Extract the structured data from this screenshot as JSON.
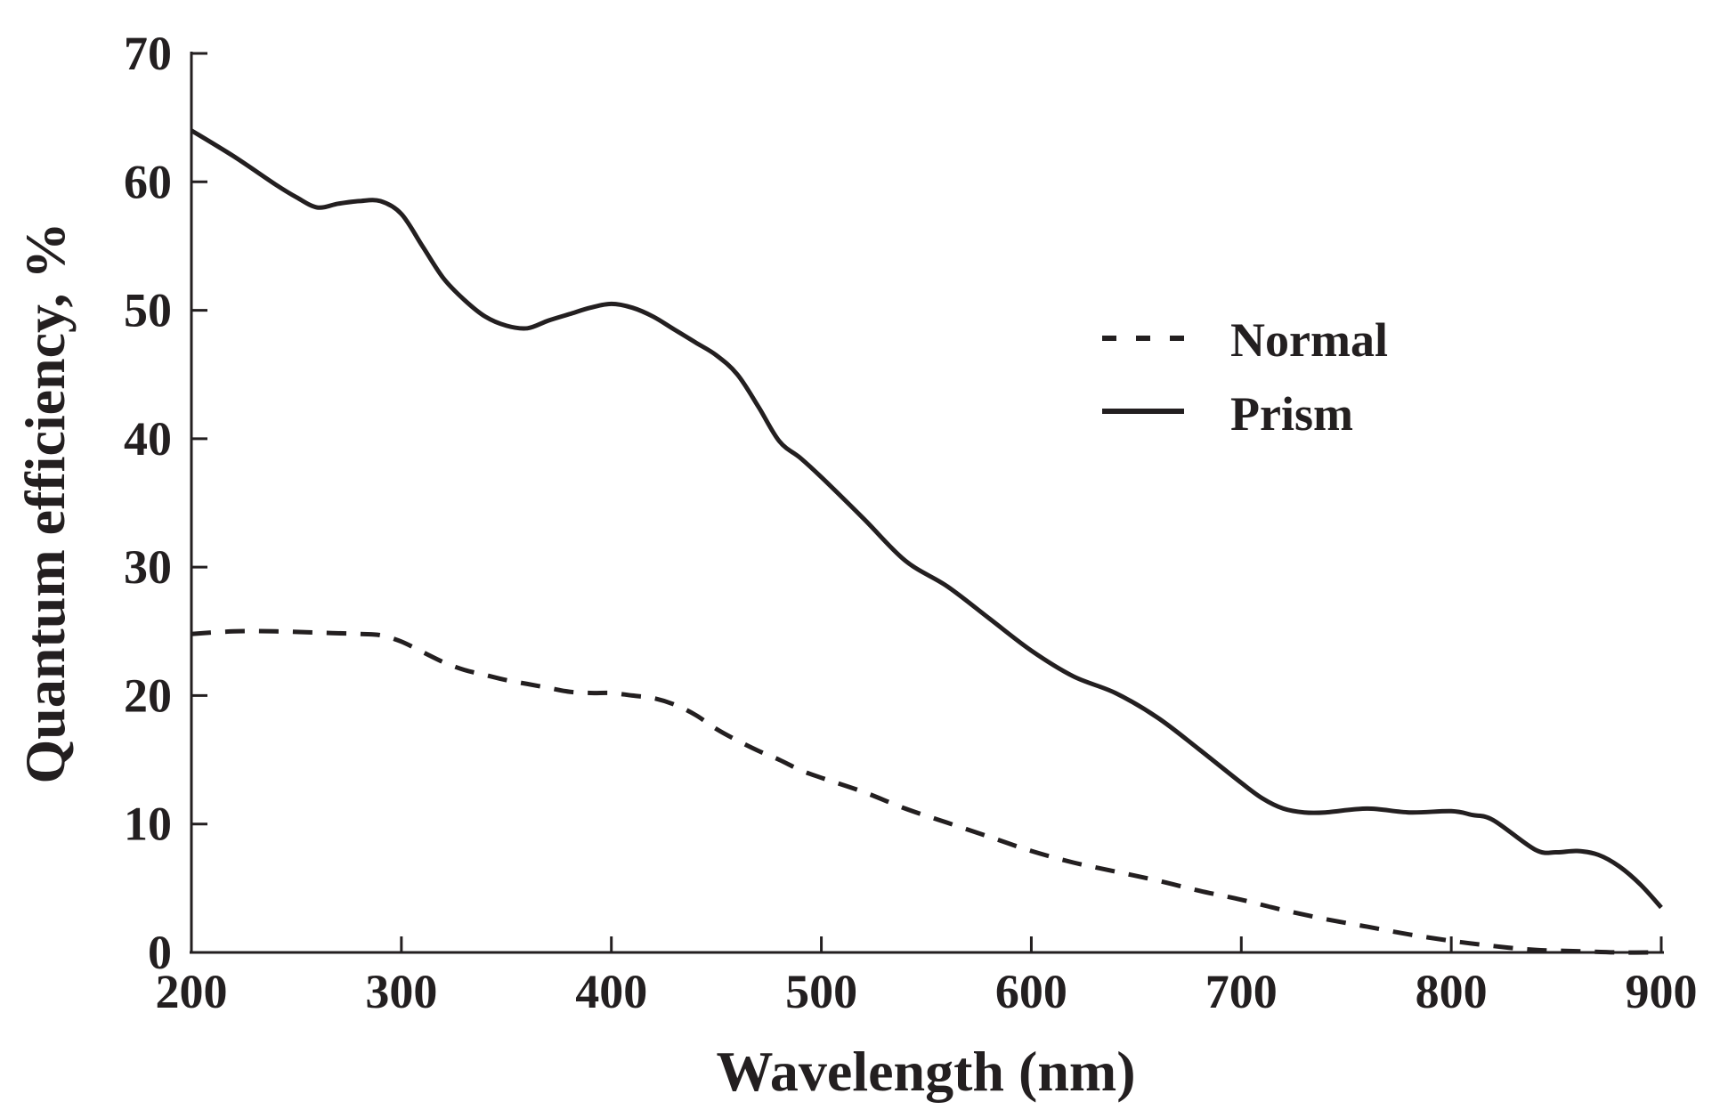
{
  "chart_data": {
    "type": "line",
    "title": "",
    "xlabel": "Wavelength (nm)",
    "ylabel": "Quantum efficiency, %",
    "xlim": [
      200,
      900
    ],
    "ylim": [
      0,
      70
    ],
    "xticks": [
      200,
      300,
      400,
      500,
      600,
      700,
      800,
      900
    ],
    "yticks": [
      0,
      10,
      20,
      30,
      40,
      50,
      60,
      70
    ],
    "grid": false,
    "legend_position": "top-right",
    "line_color": "#231f20",
    "series": [
      {
        "name": "Normal",
        "style": "dashed",
        "x": [
          200,
          220,
          240,
          260,
          280,
          290,
          300,
          310,
          320,
          330,
          340,
          350,
          360,
          370,
          380,
          390,
          400,
          410,
          420,
          430,
          440,
          450,
          460,
          470,
          480,
          490,
          500,
          520,
          540,
          560,
          580,
          600,
          620,
          640,
          660,
          680,
          700,
          720,
          740,
          760,
          780,
          800,
          820,
          840,
          860,
          880,
          900
        ],
        "y": [
          24.8,
          25.0,
          25.0,
          24.9,
          24.8,
          24.7,
          24.2,
          23.4,
          22.6,
          22.0,
          21.6,
          21.2,
          20.9,
          20.6,
          20.3,
          20.2,
          20.2,
          20.0,
          19.8,
          19.3,
          18.5,
          17.4,
          16.5,
          15.7,
          15.0,
          14.2,
          13.6,
          12.5,
          11.2,
          10.1,
          9.0,
          7.9,
          7.0,
          6.3,
          5.6,
          4.8,
          4.1,
          3.3,
          2.6,
          2.0,
          1.4,
          0.9,
          0.5,
          0.2,
          0.1,
          0.0,
          0.0
        ]
      },
      {
        "name": "Prism",
        "style": "solid",
        "x": [
          200,
          220,
          240,
          250,
          260,
          270,
          280,
          290,
          300,
          310,
          320,
          330,
          340,
          350,
          360,
          370,
          380,
          390,
          400,
          410,
          420,
          430,
          440,
          450,
          460,
          470,
          480,
          490,
          500,
          520,
          540,
          560,
          580,
          600,
          620,
          640,
          660,
          680,
          700,
          710,
          720,
          730,
          740,
          760,
          780,
          800,
          810,
          820,
          840,
          850,
          860,
          870,
          880,
          890,
          900
        ],
        "y": [
          64.0,
          62.0,
          59.8,
          58.8,
          58.0,
          58.3,
          58.5,
          58.5,
          57.5,
          55.0,
          52.5,
          50.8,
          49.5,
          48.8,
          48.6,
          49.2,
          49.7,
          50.2,
          50.5,
          50.2,
          49.5,
          48.5,
          47.5,
          46.5,
          45.0,
          42.5,
          39.8,
          38.5,
          37.0,
          33.8,
          30.5,
          28.5,
          26.0,
          23.5,
          21.5,
          20.2,
          18.3,
          15.8,
          13.2,
          12.0,
          11.2,
          10.9,
          10.9,
          11.2,
          10.9,
          11.0,
          10.7,
          10.3,
          8.0,
          7.8,
          7.9,
          7.6,
          6.7,
          5.3,
          3.5
        ]
      }
    ]
  }
}
